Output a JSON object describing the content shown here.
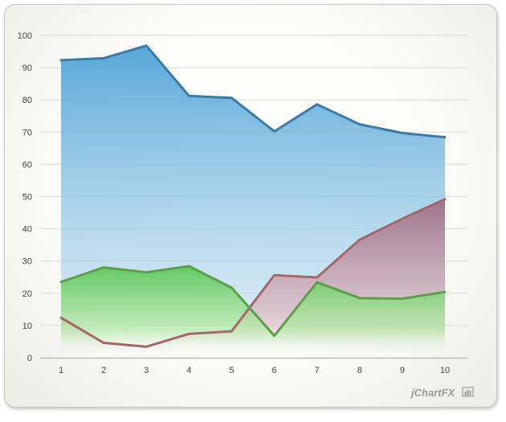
{
  "chart_data": {
    "type": "area",
    "x": [
      1,
      2,
      3,
      4,
      5,
      6,
      7,
      8,
      9,
      10
    ],
    "ylim": [
      0,
      100
    ],
    "yticks": [
      0,
      10,
      20,
      30,
      40,
      50,
      60,
      70,
      80,
      90,
      100
    ],
    "grid": true,
    "series": [
      {
        "values": [
          92.3,
          92.9,
          96.8,
          81.2,
          80.6,
          70.2,
          78.6,
          72.4,
          69.7,
          68.4
        ],
        "color": "#3a7aa6",
        "fill": "#5aa8dc"
      },
      {
        "values": [
          12.4,
          4.6,
          3.4,
          7.4,
          8.2,
          25.6,
          24.9,
          36.6,
          43.1,
          49.2
        ],
        "color": "#a5666c",
        "fill": "#b07a86"
      },
      {
        "values": [
          23.5,
          28.0,
          26.5,
          28.4,
          21.7,
          6.8,
          23.4,
          18.5,
          18.3,
          20.4
        ],
        "color": "#5e9e4a",
        "fill": "#6cd060"
      }
    ]
  },
  "branding": {
    "logo_text": "jChartFX"
  }
}
